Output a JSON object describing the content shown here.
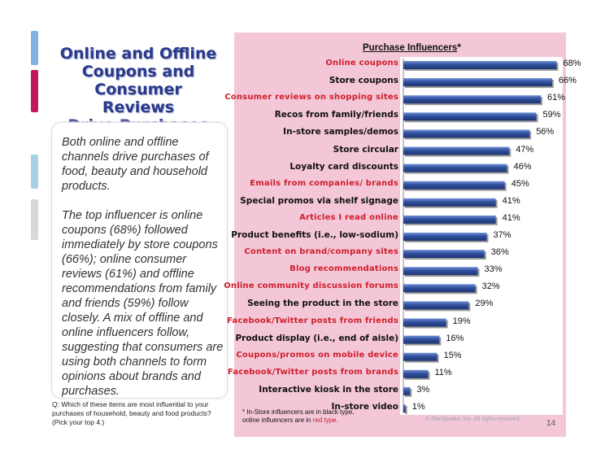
{
  "slide": {
    "title_lines": [
      "Online and Offline",
      "Coupons and",
      "Consumer Reviews",
      "Drive Purchases"
    ],
    "para1": "Both online and offline channels drive purchases of food, beauty and household products.",
    "para2": "The top influencer is online coupons (68%) followed immediately by store coupons (66%); online consumer reviews (61%) and offline recommendations from family and friends (59%) follow closely.  A mix of offline and online influencers follow, suggesting that consumers are using both channels to form opinions about brands and purchases.",
    "question": "Q: Which of these items are most influential to your purchases of household, beauty and food products? (Pick your top 4.)",
    "footnote_line1": "* In-Store influencers are in black type,",
    "footnote_line2_prefix": "online influencers are in ",
    "footnote_line2_red": "red type.",
    "copyright": "© SheSpeaks, Inc. All rights reserved.",
    "page_number": "14",
    "deco_colors": [
      "#7fb3e6",
      "#c2185b",
      "#a8cfe8",
      "#d8d8d8"
    ]
  },
  "chart_data": {
    "type": "bar",
    "orientation": "horizontal",
    "title": "Purchase Influencers",
    "title_suffix": "*",
    "xlim": [
      0,
      70
    ],
    "bar_color": "#2f4f9e",
    "online_color": "#d0202a",
    "categories": [
      {
        "label": "Online coupons",
        "value": 68,
        "online": true
      },
      {
        "label": "Store coupons",
        "value": 66,
        "online": false
      },
      {
        "label": "Consumer reviews on shopping sites",
        "value": 61,
        "online": true
      },
      {
        "label": "Recos from family/friends",
        "value": 59,
        "online": false
      },
      {
        "label": "In-store samples/demos",
        "value": 56,
        "online": false
      },
      {
        "label": "Store circular",
        "value": 47,
        "online": false
      },
      {
        "label": "Loyalty card discounts",
        "value": 46,
        "online": false
      },
      {
        "label": "Emails from companies/ brands",
        "value": 45,
        "online": true
      },
      {
        "label": "Special promos via shelf signage",
        "value": 41,
        "online": false
      },
      {
        "label": "Articles I read online",
        "value": 41,
        "online": true
      },
      {
        "label": "Product benefits (i.e., low-sodium)",
        "value": 37,
        "online": false
      },
      {
        "label": "Content on brand/company sites",
        "value": 36,
        "online": true
      },
      {
        "label": "Blog recommendations",
        "value": 33,
        "online": true
      },
      {
        "label": "Online community discussion forums",
        "value": 32,
        "online": true
      },
      {
        "label": "Seeing the product in the store",
        "value": 29,
        "online": false
      },
      {
        "label": "Facebook/Twitter posts from friends",
        "value": 19,
        "online": true
      },
      {
        "label": "Product display (i.e., end of aisle)",
        "value": 16,
        "online": false
      },
      {
        "label": "Coupons/promos on mobile device",
        "value": 15,
        "online": true
      },
      {
        "label": "Facebook/Twitter posts from brands",
        "value": 11,
        "online": true
      },
      {
        "label": "Interactive kiosk in the store",
        "value": 3,
        "online": false
      },
      {
        "label": "In-store video",
        "value": 1,
        "online": false
      }
    ],
    "value_labels": [
      "68%",
      "66%",
      "61%",
      "59%",
      "56%",
      "47%",
      "46%",
      "45%",
      "41%",
      "41%",
      "37%",
      "36%",
      "33%",
      "32%",
      "29%",
      "19%",
      "16%",
      "15%",
      "11%",
      "3%",
      "1%"
    ]
  }
}
